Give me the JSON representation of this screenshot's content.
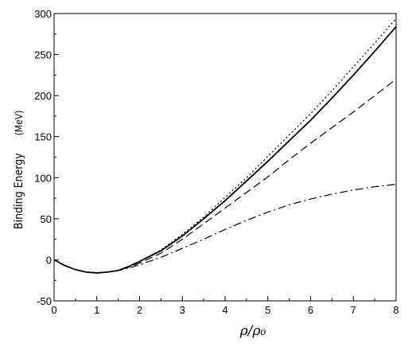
{
  "chart_data": {
    "type": "line",
    "xlabel": "ρ/ρ₀",
    "ylabel": "Binding Energy",
    "ylabel_unit": "(MeV)",
    "xlim": [
      0,
      8
    ],
    "ylim": [
      -50,
      300
    ],
    "xticks": [
      0,
      1,
      2,
      3,
      4,
      5,
      6,
      7,
      8
    ],
    "yticks": [
      -50,
      0,
      50,
      100,
      150,
      200,
      250,
      300
    ],
    "grid": false,
    "series": [
      {
        "style": "dotted",
        "x": [
          0,
          0.25,
          0.5,
          0.75,
          1.0,
          1.25,
          1.5,
          1.75,
          2.0,
          2.5,
          3.0,
          3.5,
          4.0,
          4.5,
          5.0,
          5.5,
          6.0,
          6.5,
          7.0,
          7.5,
          8.0
        ],
        "y": [
          0,
          -7,
          -12,
          -15,
          -16,
          -15,
          -13,
          -8,
          -2,
          12,
          31,
          52,
          76,
          100,
          126,
          152,
          178,
          206,
          235,
          264,
          294
        ]
      },
      {
        "style": "solid",
        "x": [
          0,
          0.25,
          0.5,
          0.75,
          1.0,
          1.25,
          1.5,
          1.75,
          2.0,
          2.5,
          3.0,
          3.5,
          4.0,
          4.5,
          5.0,
          5.5,
          6.0,
          6.5,
          7.0,
          7.5,
          8.0
        ],
        "y": [
          0,
          -7,
          -12,
          -15,
          -16,
          -15,
          -13,
          -8,
          -2,
          11,
          29,
          50,
          72,
          96,
          120,
          145,
          170,
          197,
          225,
          254,
          284
        ]
      },
      {
        "style": "dashed",
        "x": [
          0,
          0.25,
          0.5,
          0.75,
          1.0,
          1.25,
          1.5,
          1.75,
          2.0,
          2.5,
          3.0,
          3.5,
          4.0,
          4.5,
          5.0,
          5.5,
          6.0,
          6.5,
          7.0,
          7.5,
          8.0
        ],
        "y": [
          0,
          -7,
          -12,
          -15,
          -16,
          -15,
          -13,
          -9,
          -4,
          8,
          25,
          44,
          63,
          82,
          101,
          122,
          142,
          161,
          180,
          200,
          220
        ]
      },
      {
        "style": "dash-dot",
        "x": [
          0,
          0.25,
          0.5,
          0.75,
          1.0,
          1.25,
          1.5,
          1.75,
          2.0,
          2.5,
          3.0,
          3.5,
          4.0,
          4.5,
          5.0,
          5.5,
          6.0,
          6.5,
          7.0,
          7.5,
          8.0
        ],
        "y": [
          0,
          -7,
          -12,
          -15,
          -16,
          -15,
          -13,
          -10,
          -6,
          3,
          14,
          25,
          37,
          48,
          58,
          67,
          74,
          80,
          85,
          89,
          92
        ]
      }
    ]
  }
}
